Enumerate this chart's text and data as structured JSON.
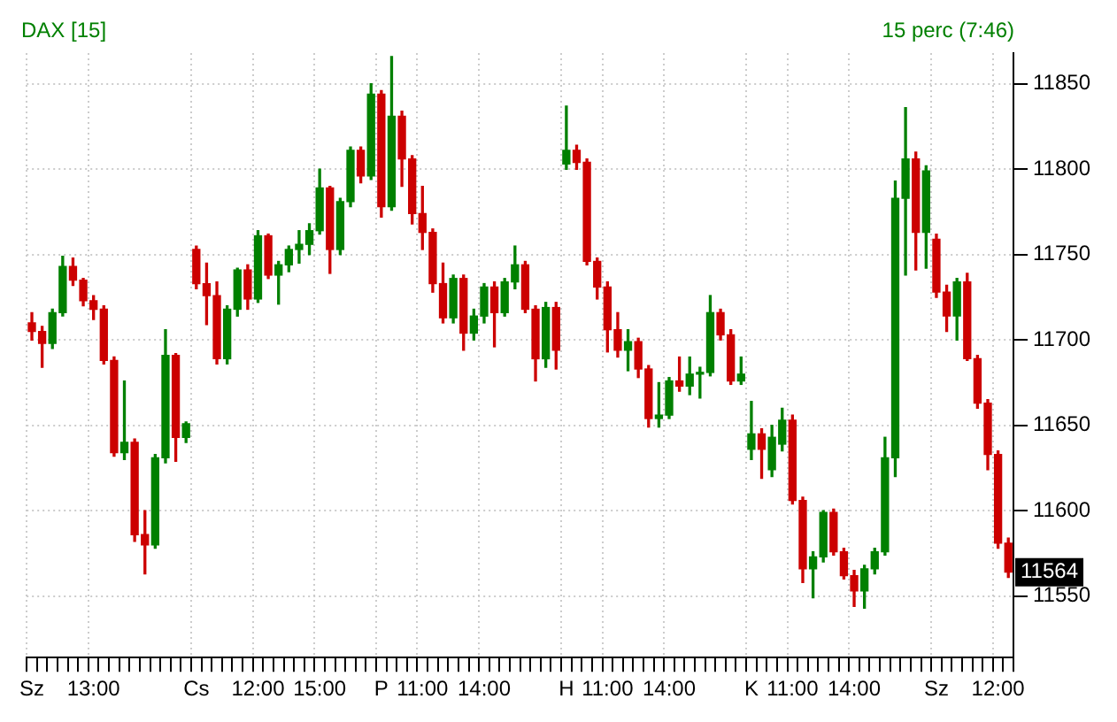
{
  "chart_data": {
    "type": "candlestick",
    "title": "DAX [15]",
    "annotations": [
      "15 perc (7:46)",
      {
        "text": "11564",
        "y": 11564
      }
    ],
    "categories": [
      "Sz",
      null,
      null,
      null,
      null,
      null,
      "13:00",
      null,
      null,
      null,
      null,
      null,
      null,
      null,
      null,
      null,
      "Cs",
      null,
      null,
      null,
      null,
      null,
      "12:00",
      null,
      null,
      null,
      null,
      null,
      "15:00",
      null,
      null,
      null,
      null,
      null,
      "P",
      null,
      null,
      null,
      "11:00",
      null,
      null,
      null,
      null,
      null,
      "14:00",
      null,
      null,
      null,
      null,
      null,
      null,
      null,
      "H",
      null,
      null,
      null,
      "11:00",
      null,
      null,
      null,
      null,
      null,
      "14:00",
      null,
      null,
      null,
      null,
      null,
      null,
      null,
      "K",
      null,
      null,
      null,
      "11:00",
      null,
      null,
      null,
      null,
      null,
      "14:00",
      null,
      null,
      null,
      null,
      null,
      null,
      null,
      "Sz",
      null,
      null,
      null,
      null,
      null,
      "12:00",
      null
    ],
    "ohlc": [
      [
        11710,
        11716,
        11700,
        11705
      ],
      [
        11705,
        11708,
        11684,
        11698
      ],
      [
        11698,
        11718,
        11695,
        11716
      ],
      [
        11716,
        11749,
        11714,
        11743
      ],
      [
        11743,
        11748,
        11732,
        11735
      ],
      [
        11735,
        11736,
        11720,
        11723
      ],
      [
        11723,
        11726,
        11712,
        11718
      ],
      [
        11718,
        11720,
        11686,
        11688
      ],
      [
        11688,
        11690,
        11632,
        11634
      ],
      [
        11634,
        11676,
        11630,
        11640
      ],
      [
        11640,
        11642,
        11582,
        11586
      ],
      [
        11586,
        11600,
        11563,
        11580
      ],
      [
        11580,
        11633,
        11578,
        11631
      ],
      [
        11631,
        11706,
        11628,
        11691
      ],
      [
        11691,
        11692,
        11629,
        11643
      ],
      [
        11643,
        11652,
        11640,
        11651
      ],
      [
        11753,
        11755,
        11730,
        11733
      ],
      [
        11733,
        11745,
        11709,
        11726
      ],
      [
        11726,
        11734,
        11686,
        11689
      ],
      [
        11689,
        11720,
        11686,
        11718
      ],
      [
        11718,
        11742,
        11714,
        11741
      ],
      [
        11741,
        11744,
        11718,
        11724
      ],
      [
        11724,
        11764,
        11722,
        11761
      ],
      [
        11761,
        11762,
        11736,
        11738
      ],
      [
        11738,
        11746,
        11721,
        11744
      ],
      [
        11744,
        11755,
        11740,
        11753
      ],
      [
        11753,
        11764,
        11745,
        11756
      ],
      [
        11756,
        11768,
        11750,
        11764
      ],
      [
        11764,
        11800,
        11762,
        11789
      ],
      [
        11789,
        11790,
        11739,
        11753
      ],
      [
        11753,
        11783,
        11750,
        11781
      ],
      [
        11781,
        11813,
        11778,
        11811
      ],
      [
        11811,
        11813,
        11792,
        11796
      ],
      [
        11796,
        11850,
        11794,
        11844
      ],
      [
        11844,
        11846,
        11772,
        11778
      ],
      [
        11778,
        11866,
        11776,
        11831
      ],
      [
        11831,
        11834,
        11790,
        11806
      ],
      [
        11806,
        11808,
        11768,
        11774
      ],
      [
        11774,
        11790,
        11753,
        11763
      ],
      [
        11763,
        11765,
        11728,
        11733
      ],
      [
        11733,
        11745,
        11710,
        11713
      ],
      [
        11713,
        11738,
        11710,
        11736
      ],
      [
        11736,
        11738,
        11694,
        11704
      ],
      [
        11704,
        11718,
        11700,
        11714
      ],
      [
        11714,
        11733,
        11710,
        11731
      ],
      [
        11731,
        11734,
        11696,
        11716
      ],
      [
        11716,
        11736,
        11714,
        11734
      ],
      [
        11734,
        11755,
        11730,
        11744
      ],
      [
        11744,
        11746,
        11716,
        11718
      ],
      [
        11718,
        11720,
        11676,
        11689
      ],
      [
        11689,
        11722,
        11684,
        11719
      ],
      [
        11719,
        11722,
        11683,
        11694
      ],
      [
        11803,
        11837,
        11800,
        11811
      ],
      [
        11811,
        11814,
        11800,
        11804
      ],
      [
        11804,
        11806,
        11744,
        11746
      ],
      [
        11746,
        11748,
        11724,
        11731
      ],
      [
        11731,
        11734,
        11693,
        11706
      ],
      [
        11706,
        11716,
        11690,
        11694
      ],
      [
        11694,
        11706,
        11682,
        11699
      ],
      [
        11699,
        11701,
        11678,
        11683
      ],
      [
        11683,
        11685,
        11649,
        11654
      ],
      [
        11654,
        11675,
        11649,
        11656
      ],
      [
        11656,
        11678,
        11654,
        11676
      ],
      [
        11676,
        11690,
        11670,
        11673
      ],
      [
        11673,
        11690,
        11668,
        11680
      ],
      [
        11680,
        11684,
        11666,
        11681
      ],
      [
        11681,
        11726,
        11679,
        11716
      ],
      [
        11716,
        11718,
        11700,
        11703
      ],
      [
        11703,
        11706,
        11674,
        11676
      ],
      [
        11676,
        11690,
        11674,
        11680
      ],
      [
        11636,
        11664,
        11630,
        11645
      ],
      [
        11645,
        11648,
        11619,
        11636
      ],
      [
        11624,
        11650,
        11620,
        11643
      ],
      [
        11639,
        11660,
        11635,
        11653
      ],
      [
        11653,
        11656,
        11604,
        11606
      ],
      [
        11606,
        11608,
        11558,
        11566
      ],
      [
        11566,
        11576,
        11549,
        11573
      ],
      [
        11573,
        11600,
        11570,
        11599
      ],
      [
        11599,
        11601,
        11574,
        11576
      ],
      [
        11576,
        11578,
        11560,
        11562
      ],
      [
        11562,
        11565,
        11544,
        11553
      ],
      [
        11553,
        11568,
        11543,
        11566
      ],
      [
        11566,
        11578,
        11563,
        11576
      ],
      [
        11576,
        11643,
        11574,
        11631
      ],
      [
        11631,
        11793,
        11620,
        11783
      ],
      [
        11783,
        11836,
        11738,
        11806
      ],
      [
        11806,
        11810,
        11741,
        11763
      ],
      [
        11763,
        11802,
        11742,
        11799
      ],
      [
        11759,
        11762,
        11725,
        11728
      ],
      [
        11728,
        11732,
        11705,
        11714
      ],
      [
        11714,
        11736,
        11700,
        11734
      ],
      [
        11734,
        11739,
        11688,
        11689
      ],
      [
        11689,
        11691,
        11660,
        11663
      ],
      [
        11663,
        11665,
        11624,
        11633
      ],
      [
        11633,
        11635,
        11578,
        11581
      ],
      [
        11581,
        11584,
        11561,
        11564
      ]
    ],
    "colors": [
      "#cc0000",
      "#cc0000",
      "#008000",
      "#008000",
      "#cc0000",
      "#cc0000",
      "#cc0000",
      "#cc0000",
      "#cc0000",
      "#008000",
      "#cc0000",
      "#cc0000",
      "#008000",
      "#008000",
      "#cc0000",
      "#008000",
      "#cc0000",
      "#cc0000",
      "#cc0000",
      "#008000",
      "#008000",
      "#cc0000",
      "#008000",
      "#cc0000",
      "#008000",
      "#008000",
      "#008000",
      "#008000",
      "#008000",
      "#cc0000",
      "#008000",
      "#008000",
      "#cc0000",
      "#008000",
      "#cc0000",
      "#008000",
      "#cc0000",
      "#cc0000",
      "#cc0000",
      "#cc0000",
      "#cc0000",
      "#008000",
      "#cc0000",
      "#008000",
      "#008000",
      "#cc0000",
      "#008000",
      "#008000",
      "#cc0000",
      "#cc0000",
      "#008000",
      "#cc0000",
      "#008000",
      "#cc0000",
      "#cc0000",
      "#cc0000",
      "#cc0000",
      "#cc0000",
      "#008000",
      "#cc0000",
      "#cc0000",
      "#008000",
      "#008000",
      "#cc0000",
      "#008000",
      "#008000",
      "#008000",
      "#cc0000",
      "#cc0000",
      "#008000",
      "#008000",
      "#cc0000",
      "#008000",
      "#008000",
      "#cc0000",
      "#cc0000",
      "#008000",
      "#008000",
      "#cc0000",
      "#cc0000",
      "#cc0000",
      "#008000",
      "#008000",
      "#008000",
      "#008000",
      "#008000",
      "#cc0000",
      "#008000",
      "#cc0000",
      "#cc0000",
      "#008000",
      "#cc0000",
      "#cc0000",
      "#cc0000",
      "#cc0000",
      "#cc0000"
    ],
    "ylim": [
      11514,
      11868
    ],
    "yticks": [
      11550,
      11600,
      11650,
      11700,
      11750,
      11800,
      11850
    ],
    "grid": true,
    "legend": false
  }
}
